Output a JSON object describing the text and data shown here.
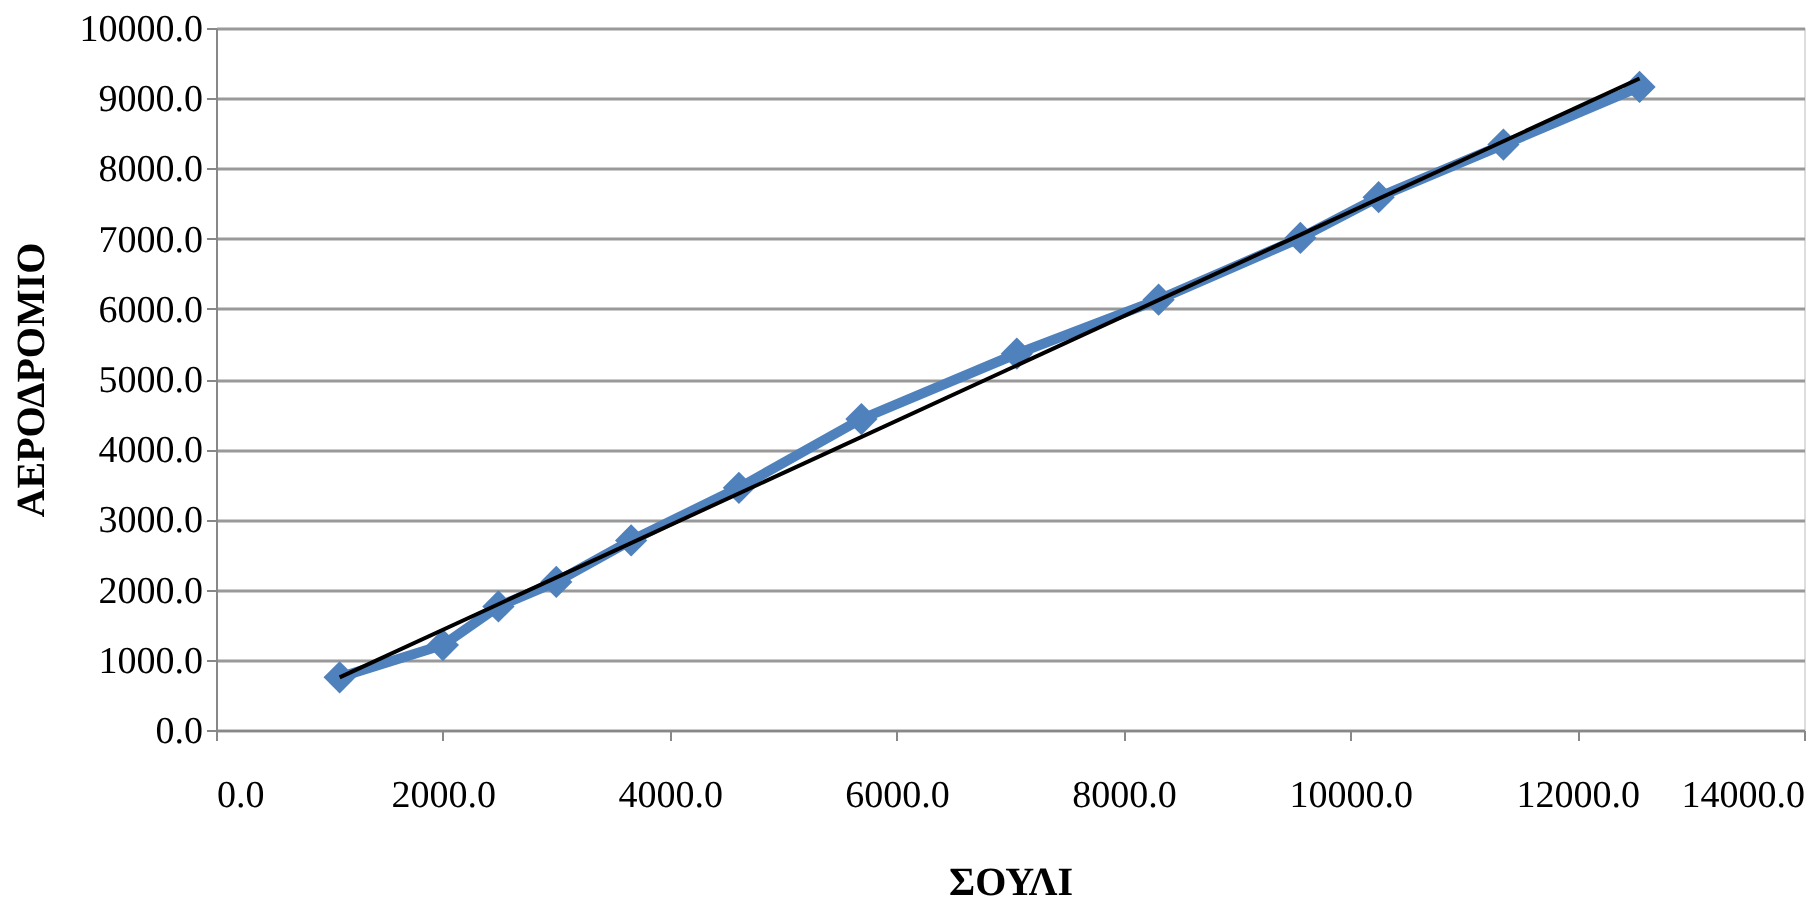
{
  "chart_data": {
    "type": "line",
    "xlabel": "ΣΟΥΛΙ",
    "ylabel": "ΑΕΡΟΔΡΟΜΙΟ",
    "x": [
      1090,
      2000,
      2490,
      3000,
      3660,
      4610,
      5690,
      7060,
      8310,
      9560,
      10250,
      11350,
      12550
    ],
    "series": [
      {
        "color": "#4f81bd",
        "marker": "diamond",
        "values": [
          750,
          1210,
          1760,
          2110,
          2700,
          3450,
          4430,
          5360,
          6130,
          7010,
          7590,
          8340,
          9160
        ]
      },
      {
        "type": "line",
        "color": "#000000",
        "marker": "none",
        "x": [
          1090,
          12550
        ],
        "values": [
          750,
          9280
        ]
      }
    ],
    "xlim": [
      0,
      14000
    ],
    "xticks": [
      {
        "value": 0,
        "label": "0.0"
      },
      {
        "value": 2000,
        "label": "2000.0"
      },
      {
        "value": 4000,
        "label": "4000.0"
      },
      {
        "value": 6000,
        "label": "6000.0"
      },
      {
        "value": 8000,
        "label": "8000.0"
      },
      {
        "value": 10000,
        "label": "10000.0"
      },
      {
        "value": 12000,
        "label": "12000.0"
      },
      {
        "value": 14000,
        "label": "14000.0"
      }
    ],
    "ylim": [
      0,
      10000
    ],
    "yticks": [
      {
        "value": 0,
        "label": "0.0"
      },
      {
        "value": 1000,
        "label": "1000.0"
      },
      {
        "value": 2000,
        "label": "2000.0"
      },
      {
        "value": 3000,
        "label": "3000.0"
      },
      {
        "value": 4000,
        "label": "4000.0"
      },
      {
        "value": 5000,
        "label": "5000.0"
      },
      {
        "value": 6000,
        "label": "6000.0"
      },
      {
        "value": 7000,
        "label": "7000.0"
      },
      {
        "value": 8000,
        "label": "8000.0"
      },
      {
        "value": 9000,
        "label": "9000.0"
      },
      {
        "value": 10000,
        "label": "10000.0"
      }
    ],
    "grid": "y"
  }
}
